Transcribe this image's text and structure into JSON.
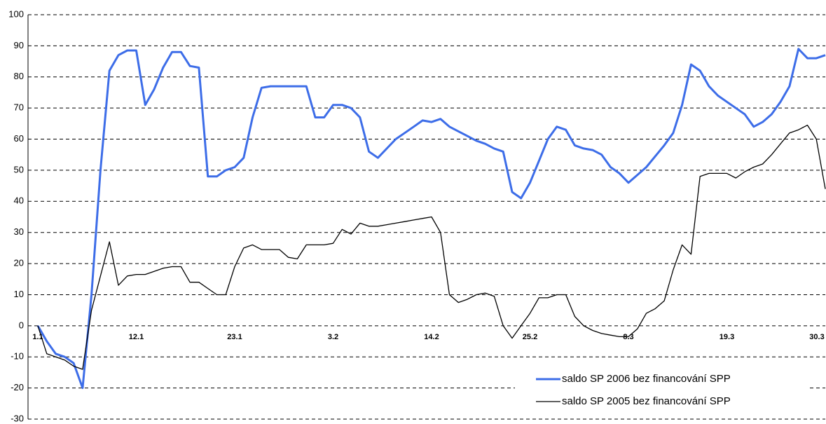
{
  "chart_data": {
    "type": "line",
    "categories": [
      "1.1",
      null,
      null,
      null,
      null,
      null,
      null,
      null,
      null,
      null,
      null,
      "12.1",
      null,
      null,
      null,
      null,
      null,
      null,
      null,
      null,
      null,
      null,
      "23.1",
      null,
      null,
      null,
      null,
      null,
      null,
      null,
      null,
      null,
      null,
      "3.2",
      null,
      null,
      null,
      null,
      null,
      null,
      null,
      null,
      null,
      null,
      "14.2",
      null,
      null,
      null,
      null,
      null,
      null,
      null,
      null,
      null,
      null,
      "25.2",
      null,
      null,
      null,
      null,
      null,
      null,
      null,
      null,
      null,
      null,
      "8.3",
      null,
      null,
      null,
      null,
      null,
      null,
      null,
      null,
      null,
      null,
      "19.3",
      null,
      null,
      null,
      null,
      null,
      null,
      null,
      null,
      null,
      null,
      "30.3"
    ],
    "series": [
      {
        "name": "saldo SP 2006 bez financování SPP",
        "color": "#3d6de8",
        "values": [
          0,
          -5,
          -9,
          -10,
          -12,
          -20,
          10,
          50,
          82,
          87,
          88.5,
          88.5,
          71,
          76,
          83,
          88,
          88,
          83.5,
          83,
          48,
          48,
          50,
          51,
          54,
          67,
          76.5,
          77,
          77,
          77,
          77,
          77,
          67,
          67,
          71,
          71,
          70,
          67,
          56,
          54,
          57,
          60,
          62,
          64,
          66,
          65.5,
          66.5,
          64,
          62.5,
          61,
          59.5,
          58.5,
          57,
          56,
          43,
          41,
          46,
          53,
          60,
          64,
          63,
          58,
          57,
          56.5,
          55,
          51,
          49,
          46,
          48.5,
          51,
          54.5,
          58,
          62,
          71,
          84,
          82,
          77,
          74,
          72,
          70,
          68,
          64,
          65.5,
          68,
          72,
          77,
          89,
          86,
          86,
          87
        ]
      },
      {
        "name": "saldo SP 2005 bez financování SPP",
        "color": "#000000",
        "values": [
          0,
          -9,
          -10,
          -11,
          -13,
          -14,
          5,
          16,
          27,
          13,
          16,
          16.5,
          16.5,
          17.5,
          18.5,
          19,
          19,
          14,
          14,
          12,
          10,
          10,
          19,
          25,
          26,
          24.5,
          24.5,
          24.5,
          22,
          21.5,
          26,
          26,
          26,
          26.5,
          31,
          29.5,
          33,
          32,
          32,
          32.5,
          33,
          33.5,
          34,
          34.5,
          35,
          30,
          10,
          7.5,
          8.5,
          10,
          10.5,
          9.5,
          0,
          -4,
          0,
          4,
          9,
          9,
          10,
          10,
          3,
          0,
          -1.5,
          -2.5,
          -3,
          -3.5,
          -3.5,
          -1,
          4,
          5.5,
          8,
          18,
          26,
          23,
          48,
          49,
          49,
          49,
          47.5,
          49.5,
          51,
          52,
          55,
          58.5,
          62,
          63,
          64.5,
          60,
          44
        ]
      }
    ],
    "ylim": [
      -30,
      100
    ],
    "yticks": [
      -30,
      -20,
      -10,
      0,
      10,
      20,
      30,
      40,
      50,
      60,
      70,
      80,
      90,
      100
    ],
    "grid": true,
    "legend": "lower-right"
  }
}
